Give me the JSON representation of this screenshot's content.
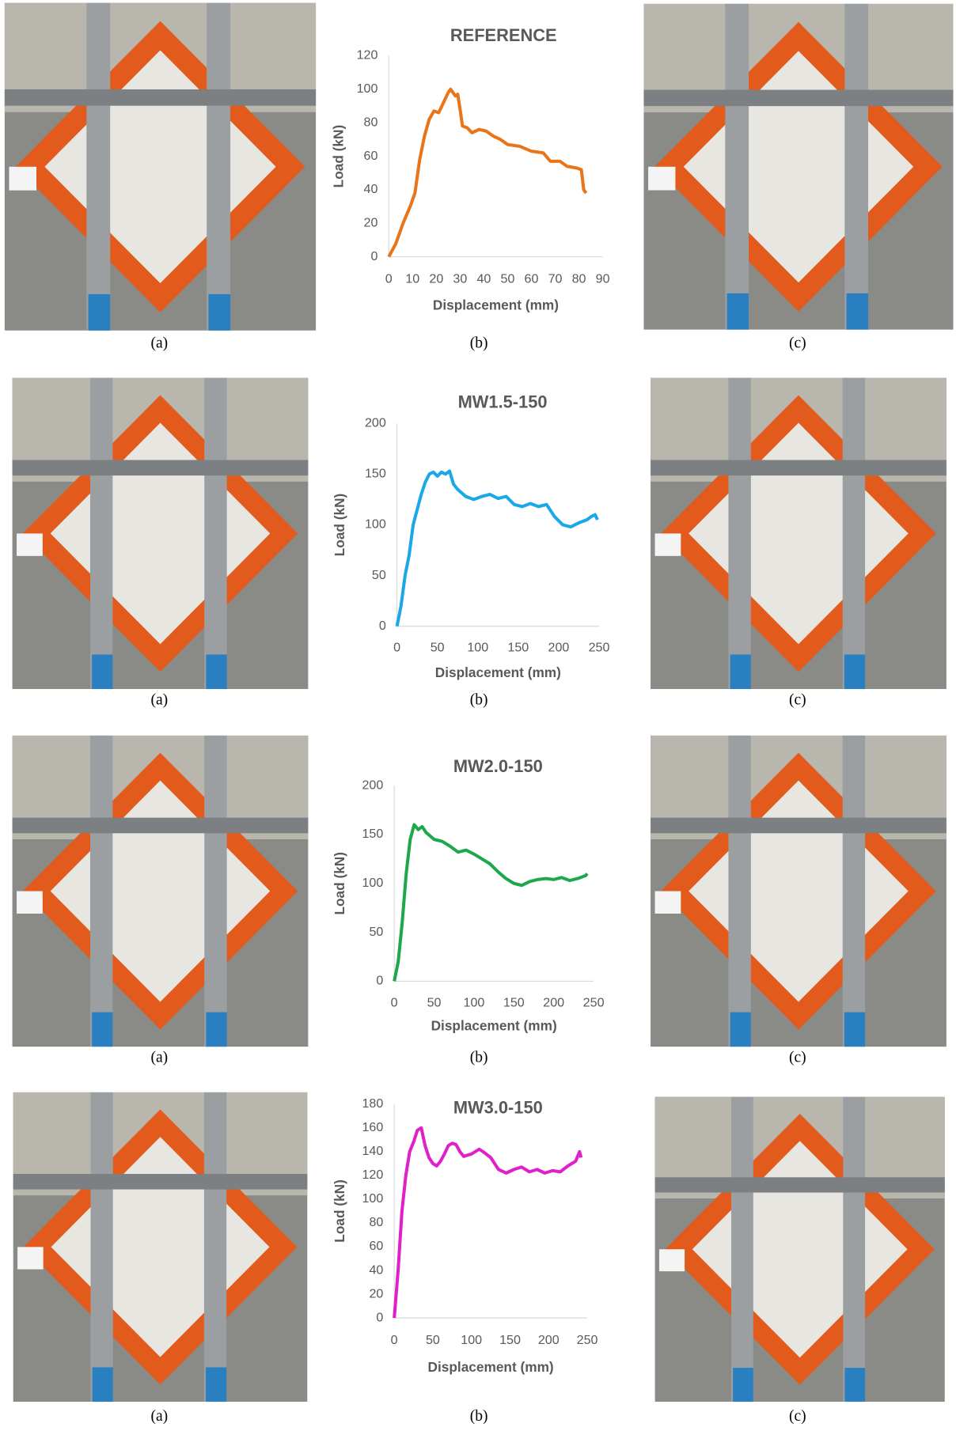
{
  "chart_data": [
    {
      "type": "line",
      "title": "REFERENCE",
      "x_label": "Displacement (mm)",
      "y_label": "Load (kN)",
      "color": "#e8751a",
      "xlim": [
        0,
        90
      ],
      "xticks": [
        0,
        10,
        20,
        30,
        40,
        50,
        60,
        70,
        80,
        90
      ],
      "ylim": [
        0,
        120
      ],
      "yticks": [
        0,
        20,
        40,
        60,
        80,
        100,
        120
      ],
      "x": [
        0,
        3,
        6,
        9,
        11,
        13,
        15,
        17,
        19,
        21,
        23,
        25,
        26,
        28,
        29,
        30,
        31,
        33,
        35,
        38,
        41,
        44,
        47,
        50,
        55,
        60,
        65,
        68,
        72,
        75,
        79,
        81,
        82,
        83
      ],
      "values": [
        0,
        8,
        20,
        30,
        38,
        58,
        72,
        82,
        87,
        86,
        92,
        98,
        100,
        96,
        97,
        88,
        78,
        77,
        74,
        76,
        75,
        72,
        70,
        67,
        66,
        63,
        62,
        57,
        57,
        54,
        53,
        52,
        40,
        38
      ]
    },
    {
      "type": "line",
      "title": "MW1.5-150",
      "x_label": "Displacement (mm)",
      "y_label": "Load (kN)",
      "color": "#1aa8e8",
      "xlim": [
        0,
        250
      ],
      "xticks": [
        0,
        50,
        100,
        150,
        200,
        250
      ],
      "ylim": [
        0,
        200
      ],
      "yticks": [
        0,
        50,
        100,
        150,
        200
      ],
      "x": [
        0,
        5,
        10,
        15,
        20,
        25,
        30,
        35,
        40,
        45,
        50,
        55,
        60,
        65,
        70,
        75,
        85,
        95,
        105,
        115,
        125,
        135,
        145,
        155,
        165,
        175,
        185,
        195,
        205,
        215,
        225,
        235,
        240,
        245,
        248
      ],
      "values": [
        0,
        20,
        50,
        70,
        100,
        115,
        130,
        142,
        150,
        152,
        148,
        152,
        150,
        153,
        140,
        135,
        128,
        125,
        128,
        130,
        126,
        128,
        120,
        118,
        121,
        118,
        120,
        108,
        100,
        98,
        102,
        105,
        108,
        110,
        105
      ]
    },
    {
      "type": "line",
      "title": "MW2.0-150",
      "x_label": "Displacement (mm)",
      "y_label": "Load (kN)",
      "color": "#1ea84c",
      "xlim": [
        0,
        250
      ],
      "xticks": [
        0,
        50,
        100,
        150,
        200,
        250
      ],
      "ylim": [
        0,
        200
      ],
      "yticks": [
        0,
        50,
        100,
        150,
        200
      ],
      "x": [
        0,
        5,
        10,
        15,
        20,
        25,
        30,
        35,
        40,
        50,
        60,
        70,
        80,
        90,
        100,
        110,
        120,
        130,
        140,
        150,
        160,
        170,
        180,
        190,
        200,
        210,
        220,
        230,
        240,
        242
      ],
      "values": [
        0,
        20,
        60,
        110,
        145,
        160,
        155,
        158,
        152,
        145,
        143,
        138,
        132,
        134,
        130,
        125,
        120,
        112,
        105,
        100,
        98,
        102,
        104,
        105,
        104,
        106,
        103,
        105,
        108,
        110
      ]
    },
    {
      "type": "line",
      "title": "MW3.0-150",
      "x_label": "Displacement (mm)",
      "y_label": "Load (kN)",
      "color": "#e020c8",
      "xlim": [
        0,
        250
      ],
      "xticks": [
        0,
        50,
        100,
        150,
        200,
        250
      ],
      "ylim": [
        0,
        180
      ],
      "yticks": [
        0,
        20,
        40,
        60,
        80,
        100,
        120,
        140,
        160,
        180
      ],
      "x": [
        0,
        5,
        10,
        15,
        20,
        25,
        30,
        35,
        40,
        45,
        50,
        55,
        60,
        65,
        70,
        75,
        80,
        85,
        90,
        100,
        110,
        115,
        125,
        135,
        145,
        155,
        165,
        175,
        185,
        195,
        205,
        215,
        225,
        235,
        240,
        242
      ],
      "values": [
        0,
        40,
        90,
        120,
        140,
        148,
        158,
        160,
        145,
        135,
        130,
        128,
        132,
        138,
        145,
        147,
        146,
        140,
        136,
        138,
        142,
        140,
        135,
        125,
        122,
        125,
        127,
        123,
        125,
        122,
        124,
        123,
        128,
        132,
        140,
        135
      ]
    }
  ],
  "captions": [
    [
      "(a)",
      "(b)",
      "(c)"
    ],
    [
      "(a)",
      "(b)",
      "(c)"
    ],
    [
      "(a)",
      "(b)",
      "(c)"
    ],
    [
      "(a)",
      "(b)",
      "(c)"
    ]
  ]
}
